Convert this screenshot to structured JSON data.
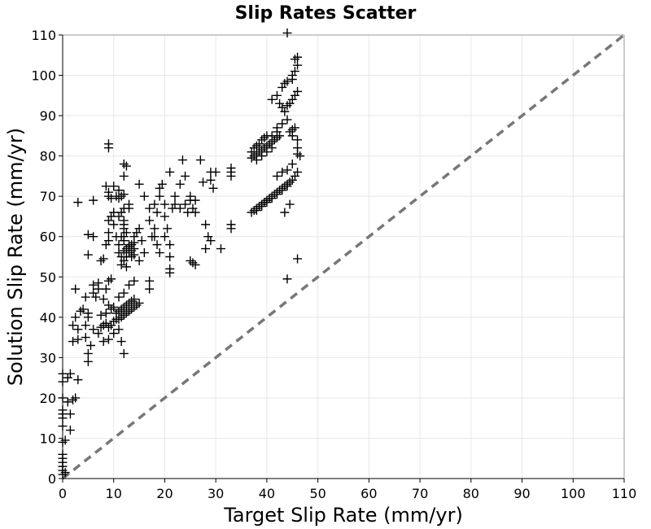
{
  "chart_data": {
    "type": "scatter",
    "title": "Slip Rates Scatter",
    "xlabel": "Target Slip Rate (mm/yr)",
    "ylabel": "Solution Slip Rate (mm/yr)",
    "xlim": [
      0,
      110
    ],
    "ylim": [
      0,
      110
    ],
    "xticks": [
      0,
      10,
      20,
      30,
      40,
      50,
      60,
      70,
      80,
      90,
      100,
      110
    ],
    "yticks": [
      0,
      10,
      20,
      30,
      40,
      50,
      60,
      70,
      80,
      90,
      100,
      110
    ],
    "grid": true,
    "marker": "plus",
    "marker_color": "#000000",
    "reference_line": {
      "type": "y=x",
      "style": "dashed",
      "color": "#777777"
    },
    "series": [
      {
        "points": [
          [
            0,
            1
          ],
          [
            0,
            2
          ],
          [
            0,
            3
          ],
          [
            0,
            4
          ],
          [
            0,
            5
          ],
          [
            0,
            6
          ],
          [
            0,
            9
          ],
          [
            0,
            13
          ],
          [
            0,
            15
          ],
          [
            0,
            16
          ],
          [
            0,
            17
          ],
          [
            0,
            20
          ],
          [
            0,
            24
          ],
          [
            0,
            26
          ],
          [
            0.5,
            1.5
          ],
          [
            0.5,
            9.5
          ],
          [
            1,
            19
          ],
          [
            1,
            25
          ],
          [
            1.5,
            12
          ],
          [
            1.5,
            16
          ],
          [
            1.5,
            26
          ],
          [
            2,
            19.5
          ],
          [
            2.5,
            20
          ],
          [
            3,
            24.5
          ],
          [
            2,
            34
          ],
          [
            3,
            34.5
          ],
          [
            3,
            37
          ],
          [
            2,
            38
          ],
          [
            2.5,
            40
          ],
          [
            3.5,
            41.5
          ],
          [
            4,
            42
          ],
          [
            2.5,
            47
          ],
          [
            3,
            68.5
          ],
          [
            4.5,
            35
          ],
          [
            4.5,
            38
          ],
          [
            5,
            40
          ],
          [
            5,
            41
          ],
          [
            5,
            29
          ],
          [
            5,
            31
          ],
          [
            5.5,
            33
          ],
          [
            4.5,
            45
          ],
          [
            6,
            46
          ],
          [
            6.5,
            45
          ],
          [
            7,
            47
          ],
          [
            5,
            55.5
          ],
          [
            5,
            60.5
          ],
          [
            6,
            60
          ],
          [
            6,
            69
          ],
          [
            6,
            48
          ],
          [
            7,
            48.5
          ],
          [
            7.5,
            54
          ],
          [
            8,
            54.5
          ],
          [
            6,
            37
          ],
          [
            7,
            36
          ],
          [
            7.5,
            37.5
          ],
          [
            8,
            38
          ],
          [
            8.5,
            38.5
          ],
          [
            9,
            37.5
          ],
          [
            9.5,
            38
          ],
          [
            10,
            39
          ],
          [
            10.5,
            39.5
          ],
          [
            7.5,
            40.5
          ],
          [
            8.5,
            41
          ],
          [
            9,
            43
          ],
          [
            9.5,
            42
          ],
          [
            10,
            42.5
          ],
          [
            8,
            44.5
          ],
          [
            8.5,
            47
          ],
          [
            9,
            49
          ],
          [
            9.5,
            49.5
          ],
          [
            11,
            39.5
          ],
          [
            11.5,
            40
          ],
          [
            12,
            40.5
          ],
          [
            12.5,
            41
          ],
          [
            13,
            41.5
          ],
          [
            13.5,
            42
          ],
          [
            14,
            42.5
          ],
          [
            14.5,
            43
          ],
          [
            15,
            43.5
          ],
          [
            10.5,
            41
          ],
          [
            11,
            41.5
          ],
          [
            11.5,
            42
          ],
          [
            12,
            42.5
          ],
          [
            12.5,
            43
          ],
          [
            13,
            43.5
          ],
          [
            13.5,
            44
          ],
          [
            14,
            44.5
          ],
          [
            11,
            45
          ],
          [
            12,
            46
          ],
          [
            13,
            48
          ],
          [
            14,
            49
          ],
          [
            8,
            34
          ],
          [
            9,
            34.5
          ],
          [
            10,
            36
          ],
          [
            11,
            37
          ],
          [
            12,
            31
          ],
          [
            11.5,
            34
          ],
          [
            8.5,
            58
          ],
          [
            9,
            59
          ],
          [
            9,
            61
          ],
          [
            9,
            64
          ],
          [
            9.5,
            65
          ],
          [
            10,
            66
          ],
          [
            10,
            63
          ],
          [
            9,
            70
          ],
          [
            9.5,
            69.5
          ],
          [
            8.5,
            72.5
          ],
          [
            9,
            71
          ],
          [
            9,
            82
          ],
          [
            9,
            83
          ],
          [
            10,
            72.5
          ],
          [
            10.5,
            70
          ],
          [
            11,
            69.5
          ],
          [
            11.5,
            70
          ],
          [
            12,
            70.5
          ],
          [
            11,
            71.5
          ],
          [
            12,
            75
          ],
          [
            12.5,
            77.5
          ],
          [
            12,
            78
          ],
          [
            11,
            65
          ],
          [
            11.5,
            66
          ],
          [
            12,
            64
          ],
          [
            12,
            62
          ],
          [
            12.5,
            61
          ],
          [
            11.5,
            60
          ],
          [
            12,
            59
          ],
          [
            13,
            58
          ],
          [
            11,
            56
          ],
          [
            11.5,
            55
          ],
          [
            12,
            54
          ],
          [
            12.5,
            55
          ],
          [
            13,
            56
          ],
          [
            13.5,
            56.5
          ],
          [
            14,
            57
          ],
          [
            12,
            56.5
          ],
          [
            12.5,
            57
          ],
          [
            13,
            57.5
          ],
          [
            13.5,
            58
          ],
          [
            14,
            58.5
          ],
          [
            13.5,
            55
          ],
          [
            14,
            55.5
          ],
          [
            12.5,
            52.5
          ],
          [
            11.5,
            53
          ],
          [
            11,
            58
          ],
          [
            10.5,
            60
          ],
          [
            12,
            67
          ],
          [
            13,
            67
          ],
          [
            13,
            68
          ],
          [
            12,
            63
          ],
          [
            12,
            60
          ],
          [
            14,
            60
          ],
          [
            14.5,
            61
          ],
          [
            15,
            62
          ],
          [
            15.5,
            59
          ],
          [
            16,
            56
          ],
          [
            15,
            54
          ],
          [
            16,
            70
          ],
          [
            15,
            73
          ],
          [
            17,
            64
          ],
          [
            17,
            67
          ],
          [
            18,
            68
          ],
          [
            17.5,
            60
          ],
          [
            18,
            62
          ],
          [
            18.5,
            58
          ],
          [
            17,
            49
          ],
          [
            17,
            47
          ],
          [
            18,
            60
          ],
          [
            18.5,
            66
          ],
          [
            19,
            70
          ],
          [
            19,
            72
          ],
          [
            19.5,
            73
          ],
          [
            20,
            65
          ],
          [
            20,
            68
          ],
          [
            19,
            56
          ],
          [
            20,
            60
          ],
          [
            20.5,
            62
          ],
          [
            21,
            51
          ],
          [
            21,
            52
          ],
          [
            21,
            55
          ],
          [
            21,
            58
          ],
          [
            21,
            76
          ],
          [
            21.5,
            67
          ],
          [
            22,
            68
          ],
          [
            22,
            70
          ],
          [
            23,
            67
          ],
          [
            23,
            73
          ],
          [
            23.5,
            79
          ],
          [
            24,
            75
          ],
          [
            24,
            68
          ],
          [
            24.5,
            66
          ],
          [
            25,
            69
          ],
          [
            25,
            70
          ],
          [
            25.5,
            67
          ],
          [
            26,
            66
          ],
          [
            25,
            54
          ],
          [
            25.5,
            53.5
          ],
          [
            26,
            53
          ],
          [
            26,
            69
          ],
          [
            27,
            79
          ],
          [
            27.5,
            73.5
          ],
          [
            28,
            63
          ],
          [
            28,
            57
          ],
          [
            28.5,
            60
          ],
          [
            29,
            59
          ],
          [
            29,
            76
          ],
          [
            29,
            74
          ],
          [
            29.5,
            72
          ],
          [
            30,
            76
          ],
          [
            31,
            57
          ],
          [
            33,
            77
          ],
          [
            33,
            76
          ],
          [
            33,
            75
          ],
          [
            33,
            63
          ],
          [
            33,
            62
          ],
          [
            37,
            79.5
          ],
          [
            37,
            81
          ],
          [
            37.5,
            82
          ],
          [
            38,
            82.5
          ],
          [
            38.5,
            83
          ],
          [
            39,
            84
          ],
          [
            39.5,
            84.5
          ],
          [
            40,
            85
          ],
          [
            41,
            85
          ],
          [
            42,
            86
          ],
          [
            37.5,
            80
          ],
          [
            38,
            80.5
          ],
          [
            38.5,
            81
          ],
          [
            39,
            81.5
          ],
          [
            39.5,
            82
          ],
          [
            40,
            82.5
          ],
          [
            40.5,
            83
          ],
          [
            41,
            83.5
          ],
          [
            41.5,
            84
          ],
          [
            42,
            84.5
          ],
          [
            42.5,
            85
          ],
          [
            38,
            79
          ],
          [
            39,
            80
          ],
          [
            40,
            81
          ],
          [
            41,
            82
          ],
          [
            41,
            94
          ],
          [
            42,
            95
          ],
          [
            42.5,
            93
          ],
          [
            43,
            92
          ],
          [
            43.5,
            91
          ],
          [
            44,
            92.5
          ],
          [
            44.5,
            93
          ],
          [
            45,
            94
          ],
          [
            45.5,
            95
          ],
          [
            46,
            96
          ],
          [
            42,
            87
          ],
          [
            43,
            88
          ],
          [
            44,
            89
          ],
          [
            44.5,
            86
          ],
          [
            45,
            86.5
          ],
          [
            45.5,
            87
          ],
          [
            45,
            85
          ],
          [
            46,
            84
          ],
          [
            46,
            82
          ],
          [
            46.5,
            80
          ],
          [
            43,
            97
          ],
          [
            43.5,
            98
          ],
          [
            44,
            98.5
          ],
          [
            45,
            99
          ],
          [
            45,
            100
          ],
          [
            45.5,
            101
          ],
          [
            46,
            102.5
          ],
          [
            45.5,
            104
          ],
          [
            46,
            104.5
          ],
          [
            44,
            110.5
          ],
          [
            37,
            66
          ],
          [
            37.5,
            66.5
          ],
          [
            38,
            67
          ],
          [
            38.5,
            67.5
          ],
          [
            39,
            68
          ],
          [
            39.5,
            68.5
          ],
          [
            40,
            69
          ],
          [
            40.5,
            69.5
          ],
          [
            41,
            70
          ],
          [
            41.5,
            70.5
          ],
          [
            42,
            71
          ],
          [
            42.5,
            71.5
          ],
          [
            43,
            72
          ],
          [
            43.5,
            72.5
          ],
          [
            44,
            73
          ],
          [
            44.5,
            73.5
          ],
          [
            45,
            74
          ],
          [
            45.5,
            75
          ],
          [
            46,
            76
          ],
          [
            38,
            66.5
          ],
          [
            39,
            67.5
          ],
          [
            40,
            68.5
          ],
          [
            41,
            69.5
          ],
          [
            42,
            70.5
          ],
          [
            43,
            71.5
          ],
          [
            44,
            72.5
          ],
          [
            42,
            75
          ],
          [
            43,
            76
          ],
          [
            44,
            76.5
          ],
          [
            44.5,
            68
          ],
          [
            43.5,
            66
          ],
          [
            44,
            49.5
          ],
          [
            46,
            54.5
          ],
          [
            45,
            78
          ],
          [
            46,
            80.5
          ]
        ]
      }
    ]
  }
}
